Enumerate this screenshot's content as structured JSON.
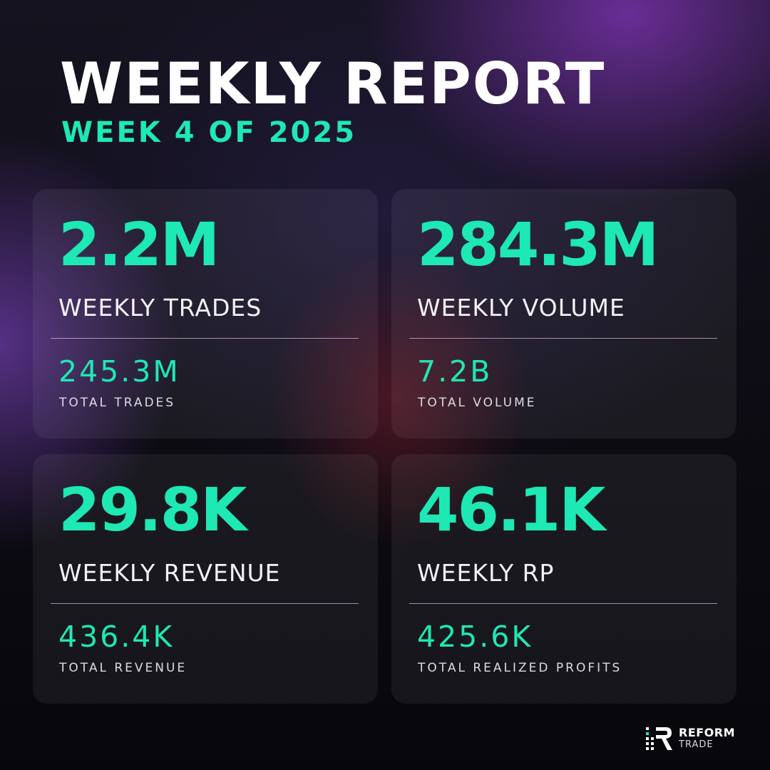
{
  "header": {
    "title": "WEEKLY REPORT",
    "subtitle": "WEEK 4 OF 2025"
  },
  "cards": [
    {
      "value": "2.2M",
      "label": "WEEKLY TRADES",
      "total_value": "245.3M",
      "total_label": "TOTAL TRADES"
    },
    {
      "value": "284.3M",
      "label": "WEEKLY VOLUME",
      "total_value": "7.2B",
      "total_label": "TOTAL VOLUME"
    },
    {
      "value": "29.8K",
      "label": "WEEKLY REVENUE",
      "total_value": "436.4K",
      "total_label": "TOTAL REVENUE"
    },
    {
      "value": "46.1K",
      "label": "WEEKLY RP",
      "total_value": "425.6K",
      "total_label": "TOTAL REALIZED PROFITS"
    }
  ],
  "brand": {
    "name": "REFORM",
    "sub": "TRADE",
    "icon": "reform-logo-icon"
  },
  "colors": {
    "accent": "#1ee8b4",
    "text": "#ffffff",
    "card": "rgba(255,255,255,0.06)"
  }
}
